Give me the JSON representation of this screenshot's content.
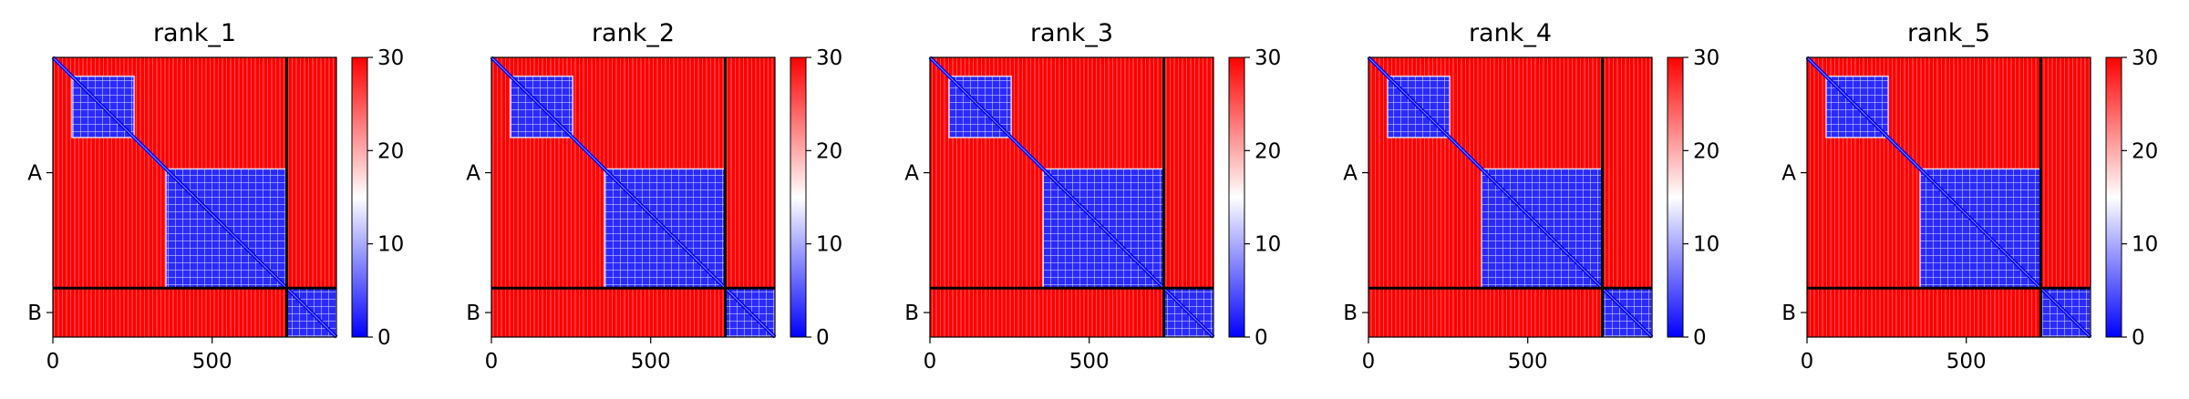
{
  "chart_data": [
    {
      "type": "heatmap",
      "title": "rank_1",
      "xlabel": "",
      "ylabel": "",
      "xlim": [
        0,
        890
      ],
      "x_ticks": [
        0,
        500
      ],
      "y_tick_labels": [
        "A",
        "B"
      ],
      "chain_lengths": {
        "A": 734,
        "B": 156
      },
      "colormap": "bwr",
      "colorbar": {
        "vmin": 0,
        "vmax": 30,
        "ticks": [
          0,
          10,
          20,
          30
        ]
      },
      "low_error_blocks": [
        {
          "rows": [
            60,
            255
          ],
          "cols": [
            60,
            255
          ],
          "value": 3
        },
        {
          "rows": [
            355,
            734
          ],
          "cols": [
            355,
            734
          ],
          "value": 4
        },
        {
          "rows": [
            734,
            890
          ],
          "cols": [
            734,
            890
          ],
          "value": 5
        }
      ],
      "background_value": 30,
      "grid": false
    },
    {
      "type": "heatmap",
      "title": "rank_2",
      "xlabel": "",
      "ylabel": "",
      "xlim": [
        0,
        890
      ],
      "x_ticks": [
        0,
        500
      ],
      "y_tick_labels": [
        "A",
        "B"
      ],
      "chain_lengths": {
        "A": 734,
        "B": 156
      },
      "colormap": "bwr",
      "colorbar": {
        "vmin": 0,
        "vmax": 30,
        "ticks": [
          0,
          10,
          20,
          30
        ]
      },
      "low_error_blocks": [
        {
          "rows": [
            60,
            255
          ],
          "cols": [
            60,
            255
          ],
          "value": 3
        },
        {
          "rows": [
            355,
            734
          ],
          "cols": [
            355,
            734
          ],
          "value": 4
        },
        {
          "rows": [
            734,
            890
          ],
          "cols": [
            734,
            890
          ],
          "value": 5
        }
      ],
      "background_value": 30,
      "grid": false
    },
    {
      "type": "heatmap",
      "title": "rank_3",
      "xlabel": "",
      "ylabel": "",
      "xlim": [
        0,
        890
      ],
      "x_ticks": [
        0,
        500
      ],
      "y_tick_labels": [
        "A",
        "B"
      ],
      "chain_lengths": {
        "A": 734,
        "B": 156
      },
      "colormap": "bwr",
      "colorbar": {
        "vmin": 0,
        "vmax": 30,
        "ticks": [
          0,
          10,
          20,
          30
        ]
      },
      "low_error_blocks": [
        {
          "rows": [
            60,
            255
          ],
          "cols": [
            60,
            255
          ],
          "value": 3
        },
        {
          "rows": [
            355,
            734
          ],
          "cols": [
            355,
            734
          ],
          "value": 4
        },
        {
          "rows": [
            734,
            890
          ],
          "cols": [
            734,
            890
          ],
          "value": 5
        }
      ],
      "background_value": 30,
      "grid": false
    },
    {
      "type": "heatmap",
      "title": "rank_4",
      "xlabel": "",
      "ylabel": "",
      "xlim": [
        0,
        890
      ],
      "x_ticks": [
        0,
        500
      ],
      "y_tick_labels": [
        "A",
        "B"
      ],
      "chain_lengths": {
        "A": 734,
        "B": 156
      },
      "colormap": "bwr",
      "colorbar": {
        "vmin": 0,
        "vmax": 30,
        "ticks": [
          0,
          10,
          20,
          30
        ]
      },
      "low_error_blocks": [
        {
          "rows": [
            60,
            255
          ],
          "cols": [
            60,
            255
          ],
          "value": 3
        },
        {
          "rows": [
            355,
            734
          ],
          "cols": [
            355,
            734
          ],
          "value": 4
        },
        {
          "rows": [
            734,
            890
          ],
          "cols": [
            734,
            890
          ],
          "value": 5
        }
      ],
      "background_value": 30,
      "grid": false
    },
    {
      "type": "heatmap",
      "title": "rank_5",
      "xlabel": "",
      "ylabel": "",
      "xlim": [
        0,
        890
      ],
      "x_ticks": [
        0,
        500
      ],
      "y_tick_labels": [
        "A",
        "B"
      ],
      "chain_lengths": {
        "A": 734,
        "B": 156
      },
      "colormap": "bwr",
      "colorbar": {
        "vmin": 0,
        "vmax": 30,
        "ticks": [
          0,
          10,
          20,
          30
        ]
      },
      "low_error_blocks": [
        {
          "rows": [
            60,
            255
          ],
          "cols": [
            60,
            255
          ],
          "value": 3
        },
        {
          "rows": [
            355,
            734
          ],
          "cols": [
            355,
            734
          ],
          "value": 4
        },
        {
          "rows": [
            734,
            890
          ],
          "cols": [
            734,
            890
          ],
          "value": 5
        }
      ],
      "background_value": 30,
      "grid": false
    }
  ],
  "colors": {
    "low": "#0000ff",
    "mid": "#ffffff",
    "high": "#ff0000",
    "divider": "#000000"
  }
}
